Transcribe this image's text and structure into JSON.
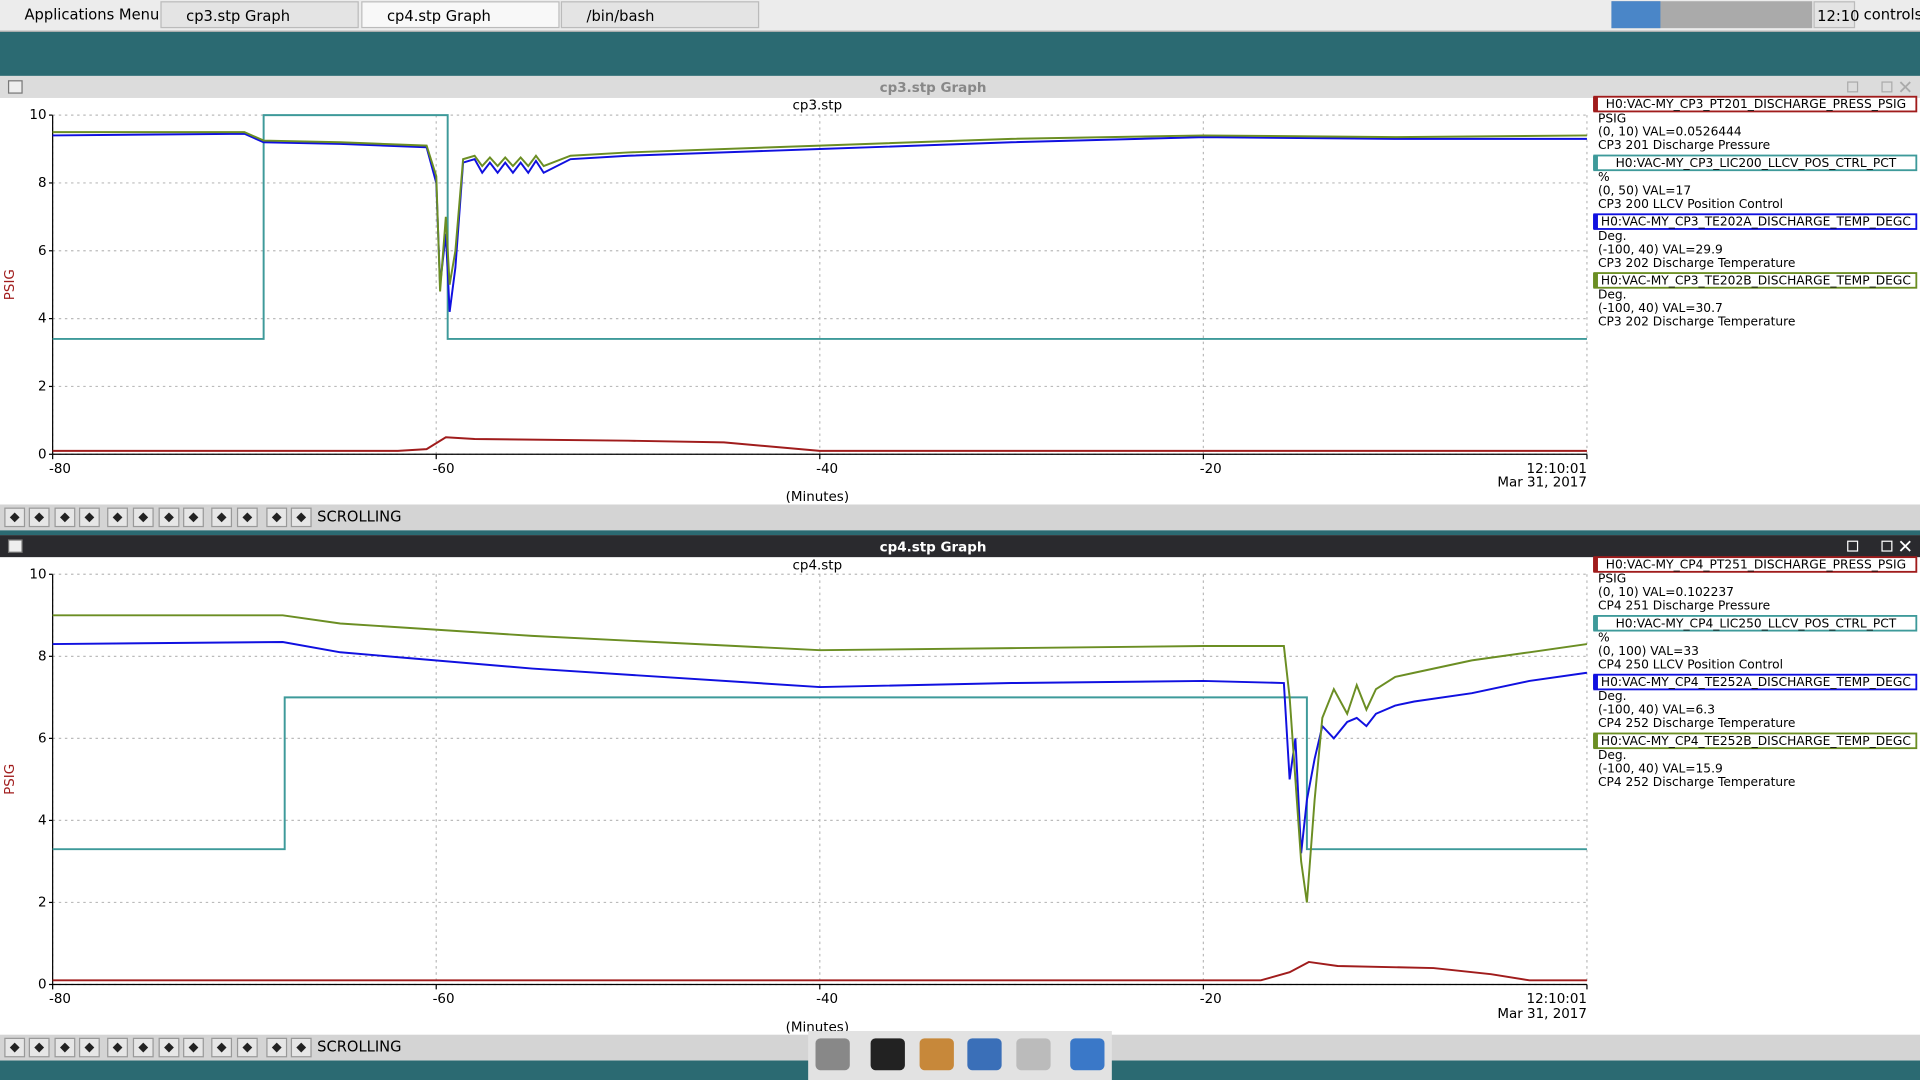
{
  "taskbar": {
    "menu": "Applications Menu",
    "tasks": [
      "cp3.stp Graph",
      "cp4.stp Graph",
      "/bin/bash"
    ],
    "clock": "12:10",
    "user": "controls"
  },
  "windows": [
    {
      "title": "cp3.stp Graph",
      "status": "SCROLLING"
    },
    {
      "title": "cp4.stp Graph",
      "status": "SCROLLING"
    }
  ],
  "chart_data": [
    {
      "type": "line",
      "title": "cp3.stp",
      "ylabel": "PSIG",
      "xlabel": "(Minutes)",
      "date_label": "Mar 31, 2017",
      "grid": true,
      "xlim": [
        -80,
        0
      ],
      "ylim": [
        0,
        10
      ],
      "xticks": [
        -80,
        -60,
        -40,
        -20,
        {
          "value": 0,
          "label": "12:10:01"
        }
      ],
      "yticks": [
        0,
        2,
        4,
        6,
        8,
        10
      ],
      "series": [
        {
          "name": "H0:VAC-MY_CP3_PT201_DISCHARGE_PRESS_PSIG",
          "color": "#a01c1c",
          "units": "PSIG",
          "range_value": "(0, 10) VAL=0.0526444",
          "description": "CP3 201 Discharge Pressure",
          "x": [
            -80,
            -62,
            -60.5,
            -59.5,
            -58,
            -50,
            -45,
            -40,
            -30,
            -20,
            0
          ],
          "values": [
            0.1,
            0.1,
            0.15,
            0.5,
            0.45,
            0.4,
            0.35,
            0.1,
            0.1,
            0.1,
            0.1
          ]
        },
        {
          "name": "H0:VAC-MY_CP3_LIC200_LLCV_POS_CTRL_PCT",
          "color": "#3e9a9a",
          "units": "%",
          "range_value": "(0, 50) VAL=17",
          "description": "CP3 200 LLCV Position Control",
          "x": [
            -80,
            -69,
            -69,
            -59.4,
            -59.4,
            0
          ],
          "values": [
            3.4,
            3.4,
            10,
            10,
            3.4,
            3.4
          ]
        },
        {
          "name": "H0:VAC-MY_CP3_TE202A_DISCHARGE_TEMP_DEGC",
          "color": "#1010e0",
          "units": "Deg.",
          "range_value": "(-100, 40) VAL=29.9",
          "description": "CP3 202 Discharge Temperature",
          "x": [
            -80,
            -70,
            -69,
            -65,
            -60.5,
            -60,
            -59.8,
            -59.5,
            -59.3,
            -59,
            -58.6,
            -58,
            -57.6,
            -57.2,
            -56.8,
            -56.4,
            -56,
            -55.6,
            -55.2,
            -54.8,
            -54.4,
            -53,
            -50,
            -40,
            -30,
            -20,
            -10,
            0
          ],
          "values": [
            9.4,
            9.45,
            9.2,
            9.15,
            9.05,
            8.0,
            5.0,
            6.5,
            4.2,
            5.5,
            8.6,
            8.7,
            8.3,
            8.6,
            8.3,
            8.6,
            8.3,
            8.6,
            8.3,
            8.65,
            8.3,
            8.7,
            8.8,
            9.0,
            9.2,
            9.35,
            9.3,
            9.3
          ]
        },
        {
          "name": "H0:VAC-MY_CP3_TE202B_DISCHARGE_TEMP_DEGC",
          "color": "#6b8e23",
          "units": "Deg.",
          "range_value": "(-100, 40) VAL=30.7",
          "description": "CP3 202 Discharge Temperature",
          "x": [
            -80,
            -70,
            -69,
            -65,
            -60.5,
            -60,
            -59.8,
            -59.5,
            -59.3,
            -59,
            -58.6,
            -58,
            -57.6,
            -57.2,
            -56.8,
            -56.4,
            -56,
            -55.6,
            -55.2,
            -54.8,
            -54.4,
            -53,
            -50,
            -40,
            -30,
            -20,
            -10,
            0
          ],
          "values": [
            9.5,
            9.5,
            9.25,
            9.2,
            9.1,
            8.2,
            4.8,
            7.0,
            5.0,
            6.0,
            8.7,
            8.8,
            8.5,
            8.75,
            8.5,
            8.75,
            8.5,
            8.75,
            8.5,
            8.8,
            8.5,
            8.8,
            8.9,
            9.1,
            9.3,
            9.4,
            9.35,
            9.4
          ]
        }
      ]
    },
    {
      "type": "line",
      "title": "cp4.stp",
      "ylabel": "PSIG",
      "xlabel": "(Minutes)",
      "date_label": "Mar 31, 2017",
      "grid": true,
      "xlim": [
        -80,
        0
      ],
      "ylim": [
        0,
        10
      ],
      "xticks": [
        -80,
        -60,
        -40,
        -20,
        {
          "value": 0,
          "label": "12:10:01"
        }
      ],
      "yticks": [
        0,
        2,
        4,
        6,
        8,
        10
      ],
      "series": [
        {
          "name": "H0:VAC-MY_CP4_PT251_DISCHARGE_PRESS_PSIG",
          "color": "#a01c1c",
          "units": "PSIG",
          "range_value": "(0, 10) VAL=0.102237",
          "description": "CP4 251 Discharge Pressure",
          "x": [
            -80,
            -17,
            -15.5,
            -14.5,
            -13,
            -8,
            -5,
            -3,
            0
          ],
          "values": [
            0.1,
            0.1,
            0.3,
            0.55,
            0.45,
            0.4,
            0.25,
            0.1,
            0.1
          ]
        },
        {
          "name": "H0:VAC-MY_CP4_LIC250_LLCV_POS_CTRL_PCT",
          "color": "#3e9a9a",
          "units": "%",
          "range_value": "(0, 100) VAL=33",
          "description": "CP4 250 LLCV Position Control",
          "x": [
            -80,
            -67.9,
            -67.9,
            -14.6,
            -14.6,
            0
          ],
          "values": [
            3.3,
            3.3,
            7,
            7,
            3.3,
            3.3
          ]
        },
        {
          "name": "H0:VAC-MY_CP4_TE252A_DISCHARGE_TEMP_DEGC",
          "color": "#1010e0",
          "units": "Deg.",
          "range_value": "(-100, 40) VAL=6.3",
          "description": "CP4 252 Discharge Temperature",
          "x": [
            -80,
            -68,
            -65,
            -55,
            -40,
            -30,
            -20,
            -15.8,
            -15.5,
            -15.2,
            -14.9,
            -14.6,
            -14.2,
            -13.8,
            -13.2,
            -12.5,
            -12,
            -11.5,
            -11,
            -10,
            -9,
            -6,
            -3,
            0
          ],
          "values": [
            8.3,
            8.35,
            8.1,
            7.7,
            7.25,
            7.35,
            7.4,
            7.35,
            5.0,
            6.0,
            3.2,
            4.5,
            5.5,
            6.3,
            6.0,
            6.4,
            6.5,
            6.3,
            6.6,
            6.8,
            6.9,
            7.1,
            7.4,
            7.6
          ]
        },
        {
          "name": "H0:VAC-MY_CP4_TE252B_DISCHARGE_TEMP_DEGC",
          "color": "#6b8e23",
          "units": "Deg.",
          "range_value": "(-100, 40) VAL=15.9",
          "description": "CP4 252 Discharge Temperature",
          "x": [
            -80,
            -68,
            -65,
            -55,
            -40,
            -30,
            -20,
            -15.8,
            -15.5,
            -15.2,
            -14.9,
            -14.6,
            -14.2,
            -13.8,
            -13.2,
            -12.5,
            -12,
            -11.5,
            -11,
            -10,
            -9,
            -6,
            -3,
            0
          ],
          "values": [
            9.0,
            9.0,
            8.8,
            8.5,
            8.15,
            8.2,
            8.25,
            8.25,
            7.0,
            5.0,
            3.0,
            2.0,
            4.5,
            6.5,
            7.2,
            6.6,
            7.3,
            6.7,
            7.2,
            7.5,
            7.6,
            7.9,
            8.1,
            8.3
          ]
        }
      ]
    }
  ]
}
